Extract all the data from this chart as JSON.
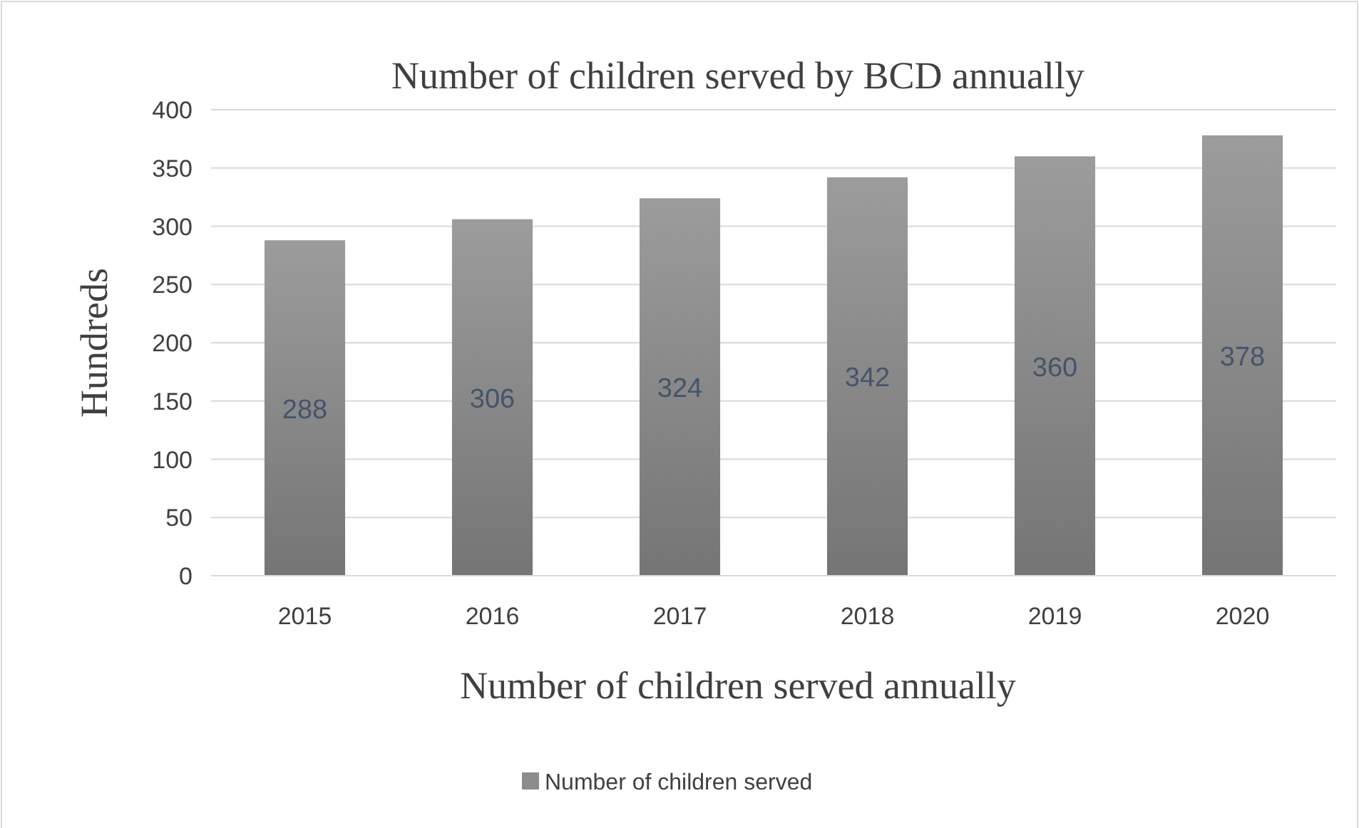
{
  "chart_data": {
    "type": "bar",
    "title": "Number of children served by BCD annually",
    "xlabel": "Number of children served annually",
    "ylabel": "Hundreds",
    "categories": [
      "2015",
      "2016",
      "2017",
      "2018",
      "2019",
      "2020"
    ],
    "series": [
      {
        "name": "Number of children served",
        "color": "#8c8c8c",
        "values": [
          288,
          306,
          324,
          342,
          360,
          378
        ]
      }
    ],
    "ylim": [
      0,
      400
    ],
    "yticks": [
      0,
      50,
      100,
      150,
      200,
      250,
      300,
      350,
      400
    ],
    "grid": "y",
    "legend": "bottom",
    "data_labels": true
  }
}
